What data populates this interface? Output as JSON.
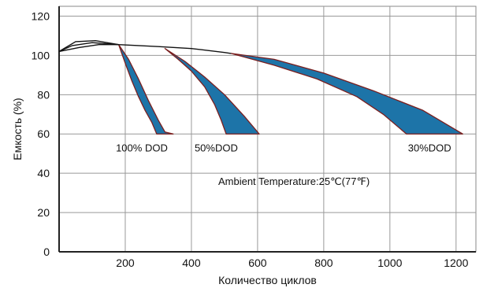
{
  "chart_data": {
    "type": "area",
    "xlabel": "Количество циклов",
    "ylabel": "Емкость (%)",
    "xlim": [
      0,
      1260
    ],
    "ylim": [
      0,
      125
    ],
    "xticks": [
      200,
      400,
      600,
      800,
      1000,
      1200
    ],
    "yticks": [
      0,
      20,
      40,
      60,
      80,
      100,
      120
    ],
    "grid": true,
    "series": [
      {
        "name": "100% DOD",
        "upper": [
          [
            180,
            105.5
          ],
          [
            210,
            98
          ],
          [
            240,
            88
          ],
          [
            270,
            77
          ],
          [
            300,
            67
          ],
          [
            320,
            61
          ],
          [
            345,
            60
          ]
        ],
        "lower": [
          [
            180,
            105.5
          ],
          [
            200,
            96
          ],
          [
            220,
            87
          ],
          [
            240,
            79
          ],
          [
            260,
            72
          ],
          [
            280,
            66
          ],
          [
            295,
            60
          ]
        ],
        "fill_color": "#1d74a8"
      },
      {
        "name": "50%DOD",
        "upper": [
          [
            320,
            103.5
          ],
          [
            380,
            97
          ],
          [
            440,
            89
          ],
          [
            500,
            80
          ],
          [
            560,
            69
          ],
          [
            605,
            60
          ]
        ],
        "lower": [
          [
            320,
            103.5
          ],
          [
            360,
            98
          ],
          [
            400,
            92
          ],
          [
            440,
            84
          ],
          [
            470,
            75
          ],
          [
            490,
            67
          ],
          [
            505,
            60
          ]
        ],
        "fill_color": "#1d74a8"
      },
      {
        "name": "30%DOD",
        "upper": [
          [
            520,
            101
          ],
          [
            650,
            98
          ],
          [
            800,
            91
          ],
          [
            950,
            82
          ],
          [
            1100,
            72
          ],
          [
            1220,
            60
          ]
        ],
        "lower": [
          [
            520,
            101
          ],
          [
            650,
            95
          ],
          [
            780,
            88
          ],
          [
            900,
            79
          ],
          [
            980,
            70
          ],
          [
            1050,
            60
          ]
        ],
        "fill_color": "#1d74a8"
      }
    ],
    "initial_curves": [
      [
        [
          0,
          102
        ],
        [
          40,
          105
        ],
        [
          100,
          106.5
        ],
        [
          180,
          105.5
        ],
        [
          300,
          104.5
        ],
        [
          400,
          103.5
        ],
        [
          500,
          101.5
        ],
        [
          520,
          101
        ]
      ],
      [
        [
          0,
          102
        ],
        [
          50,
          107
        ],
        [
          110,
          107.5
        ],
        [
          180,
          105.5
        ]
      ],
      [
        [
          0,
          102
        ],
        [
          60,
          104
        ],
        [
          120,
          105.5
        ],
        [
          180,
          105.5
        ]
      ]
    ],
    "labels": [
      {
        "text": "100% DOD",
        "x": 250,
        "y": 51
      },
      {
        "text": "50%DOD",
        "x": 475,
        "y": 51
      },
      {
        "text": "30%DOD",
        "x": 1120,
        "y": 51
      }
    ],
    "annotation": {
      "text": "Ambient Temperature:25℃(77℉)",
      "x": 710,
      "y": 34
    }
  }
}
